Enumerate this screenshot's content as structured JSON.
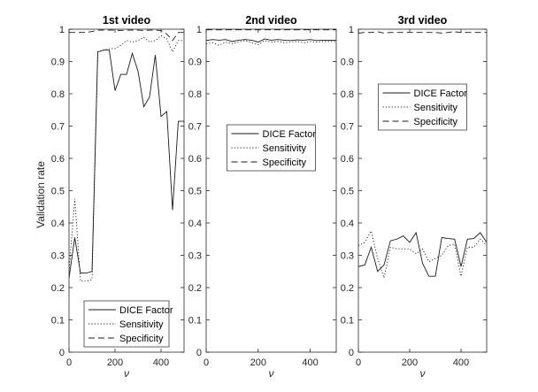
{
  "ylabel": "Validation rate",
  "chart_data": [
    {
      "type": "line",
      "title": "1st video",
      "xlabel": "ν",
      "xlim": [
        0,
        500
      ],
      "ylim": [
        0,
        1
      ],
      "xticks": [
        0,
        200,
        400
      ],
      "yticks": [
        0,
        0.1,
        0.2,
        0.3,
        0.4,
        0.5,
        0.6,
        0.7,
        0.8,
        0.9,
        1
      ],
      "legend_position": "bottom-center",
      "series": [
        {
          "name": "DICE Factor",
          "style": "solid",
          "x": [
            0,
            25,
            50,
            75,
            100,
            125,
            150,
            175,
            200,
            225,
            250,
            275,
            300,
            325,
            350,
            375,
            400,
            425,
            450,
            475,
            500
          ],
          "y": [
            0.23,
            0.355,
            0.245,
            0.245,
            0.25,
            0.93,
            0.935,
            0.935,
            0.81,
            0.86,
            0.86,
            0.925,
            0.87,
            0.76,
            0.79,
            0.92,
            0.73,
            0.745,
            0.44,
            0.715,
            0.715
          ]
        },
        {
          "name": "Sensitivity",
          "style": "dotted",
          "x": [
            0,
            25,
            50,
            75,
            100,
            125,
            150,
            175,
            200,
            225,
            250,
            275,
            300,
            325,
            350,
            375,
            400,
            425,
            450,
            475,
            500
          ],
          "y": [
            0.25,
            0.475,
            0.22,
            0.22,
            0.225,
            0.93,
            0.935,
            0.94,
            0.94,
            0.95,
            0.965,
            0.96,
            0.965,
            0.975,
            0.96,
            0.965,
            0.98,
            0.97,
            0.93,
            0.965,
            0.965
          ]
        },
        {
          "name": "Specificity",
          "style": "dashed",
          "x": [
            0,
            25,
            50,
            75,
            100,
            125,
            150,
            175,
            200,
            225,
            250,
            275,
            300,
            325,
            350,
            375,
            400,
            425,
            450,
            475,
            500
          ],
          "y": [
            0.99,
            0.99,
            0.99,
            0.99,
            0.993,
            0.997,
            0.997,
            0.997,
            0.997,
            0.996,
            0.997,
            0.997,
            0.997,
            0.996,
            0.997,
            0.997,
            0.996,
            0.985,
            0.965,
            0.99,
            0.99
          ]
        }
      ]
    },
    {
      "type": "line",
      "title": "2nd video",
      "xlabel": "ν",
      "xlim": [
        0,
        500
      ],
      "ylim": [
        0,
        1
      ],
      "xticks": [
        0,
        200,
        400
      ],
      "yticks": [
        0,
        0.1,
        0.2,
        0.3,
        0.4,
        0.5,
        0.6,
        0.7,
        0.8,
        0.9,
        1
      ],
      "legend_position": "top-center",
      "series": [
        {
          "name": "DICE Factor",
          "style": "solid",
          "x": [
            0,
            25,
            50,
            75,
            100,
            125,
            150,
            175,
            200,
            225,
            250,
            275,
            300,
            325,
            350,
            375,
            400,
            425,
            450,
            475,
            500
          ],
          "y": [
            0.965,
            0.968,
            0.966,
            0.968,
            0.962,
            0.966,
            0.968,
            0.966,
            0.96,
            0.97,
            0.966,
            0.968,
            0.966,
            0.965,
            0.967,
            0.966,
            0.968,
            0.965,
            0.966,
            0.966,
            0.966
          ]
        },
        {
          "name": "Sensitivity",
          "style": "dotted",
          "x": [
            0,
            25,
            50,
            75,
            100,
            125,
            150,
            175,
            200,
            225,
            250,
            275,
            300,
            325,
            350,
            375,
            400,
            425,
            450,
            475,
            500
          ],
          "y": [
            0.955,
            0.958,
            0.95,
            0.96,
            0.955,
            0.96,
            0.965,
            0.958,
            0.952,
            0.965,
            0.96,
            0.962,
            0.958,
            0.96,
            0.962,
            0.958,
            0.962,
            0.96,
            0.962,
            0.962,
            0.962
          ]
        },
        {
          "name": "Specificity",
          "style": "dashed",
          "x": [
            0,
            25,
            50,
            75,
            100,
            125,
            150,
            175,
            200,
            225,
            250,
            275,
            300,
            325,
            350,
            375,
            400,
            425,
            450,
            475,
            500
          ],
          "y": [
            0.998,
            0.998,
            0.998,
            0.998,
            0.998,
            0.998,
            0.998,
            0.998,
            0.998,
            0.998,
            0.998,
            0.998,
            0.998,
            0.998,
            0.998,
            0.998,
            0.998,
            0.998,
            0.998,
            0.998,
            0.998
          ]
        }
      ]
    },
    {
      "type": "line",
      "title": "3rd video",
      "xlabel": "ν",
      "xlim": [
        0,
        500
      ],
      "ylim": [
        0,
        1
      ],
      "xticks": [
        0,
        200,
        400
      ],
      "yticks": [
        0,
        0.1,
        0.2,
        0.3,
        0.4,
        0.5,
        0.6,
        0.7,
        0.8,
        0.9,
        1
      ],
      "legend_position": "top-center",
      "series": [
        {
          "name": "DICE Factor",
          "style": "solid",
          "x": [
            0,
            25,
            50,
            75,
            100,
            125,
            150,
            175,
            200,
            225,
            250,
            275,
            300,
            325,
            350,
            375,
            400,
            425,
            450,
            475,
            500
          ],
          "y": [
            0.265,
            0.27,
            0.325,
            0.25,
            0.27,
            0.345,
            0.35,
            0.36,
            0.34,
            0.37,
            0.275,
            0.235,
            0.235,
            0.355,
            0.352,
            0.35,
            0.265,
            0.35,
            0.352,
            0.37,
            0.34
          ]
        },
        {
          "name": "Sensitivity",
          "style": "dotted",
          "x": [
            0,
            25,
            50,
            75,
            100,
            125,
            150,
            175,
            200,
            225,
            250,
            275,
            300,
            325,
            350,
            375,
            400,
            425,
            450,
            475,
            500
          ],
          "y": [
            0.33,
            0.34,
            0.375,
            0.29,
            0.23,
            0.325,
            0.32,
            0.32,
            0.32,
            0.305,
            0.32,
            0.28,
            0.29,
            0.3,
            0.33,
            0.335,
            0.235,
            0.325,
            0.325,
            0.35,
            0.33
          ]
        },
        {
          "name": "Specificity",
          "style": "dashed",
          "x": [
            0,
            25,
            50,
            75,
            100,
            125,
            150,
            175,
            200,
            225,
            250,
            275,
            300,
            325,
            350,
            375,
            400,
            425,
            450,
            475,
            500
          ],
          "y": [
            0.988,
            0.99,
            0.99,
            0.992,
            0.988,
            0.99,
            0.99,
            0.99,
            0.99,
            0.99,
            0.99,
            0.99,
            0.99,
            0.988,
            0.99,
            0.992,
            0.99,
            0.99,
            0.99,
            0.99,
            0.99
          ]
        }
      ]
    }
  ]
}
